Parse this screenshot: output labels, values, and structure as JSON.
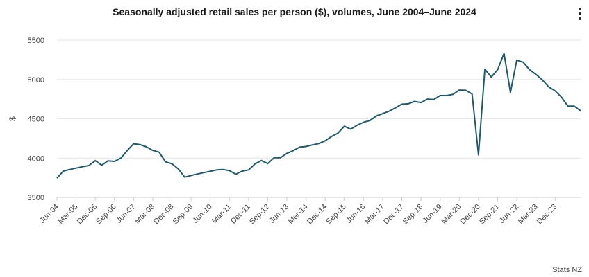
{
  "header": {
    "menu_icon": "more-vertical-icon"
  },
  "footer": {
    "source": "Stats NZ"
  },
  "colors": {
    "line": "#1d5a6b",
    "grid": "#e6e6e6",
    "axis": "#cccccc"
  },
  "chart_data": {
    "type": "line",
    "title": "Seasonally adjusted retail sales per person ($), volumes, June 2004–June 2024",
    "xlabel": "",
    "ylabel": "$",
    "ylim": [
      3500,
      5500
    ],
    "yticks": [
      3500,
      4000,
      4500,
      5000,
      5500
    ],
    "xtick_labels": [
      "Jun-04",
      "Mar-05",
      "Dec-05",
      "Sep-06",
      "Jun-07",
      "Mar-08",
      "Dec-08",
      "Sep-09",
      "Jun-10",
      "Mar-11",
      "Dec-11",
      "Sep-12",
      "Jun-13",
      "Mar-14",
      "Dec-14",
      "Sep-15",
      "Jun-16",
      "Mar-17",
      "Dec-17",
      "Sep-18",
      "Jun-19",
      "Mar-20",
      "Dec-20",
      "Sep-21",
      "Jun-22",
      "Mar-23",
      "Dec-23"
    ],
    "series": [
      {
        "name": "Retail sales per person",
        "frequency": "quarterly",
        "start": "Jun-04",
        "values": [
          3745,
          3835,
          3855,
          3873,
          3890,
          3905,
          3968,
          3910,
          3965,
          3958,
          4000,
          4095,
          4182,
          4172,
          4143,
          4098,
          4075,
          3952,
          3928,
          3862,
          3758,
          3778,
          3798,
          3815,
          3832,
          3850,
          3855,
          3840,
          3795,
          3835,
          3850,
          3925,
          3970,
          3930,
          4005,
          4005,
          4060,
          4095,
          4140,
          4148,
          4168,
          4185,
          4220,
          4275,
          4318,
          4405,
          4368,
          4418,
          4455,
          4478,
          4535,
          4565,
          4595,
          4638,
          4685,
          4690,
          4720,
          4705,
          4750,
          4745,
          4795,
          4795,
          4810,
          4865,
          4862,
          4815,
          4040,
          5130,
          5030,
          5125,
          5330,
          4835,
          5245,
          5220,
          5125,
          5065,
          4995,
          4905,
          4855,
          4775,
          4660,
          4660,
          4600
        ]
      }
    ]
  }
}
